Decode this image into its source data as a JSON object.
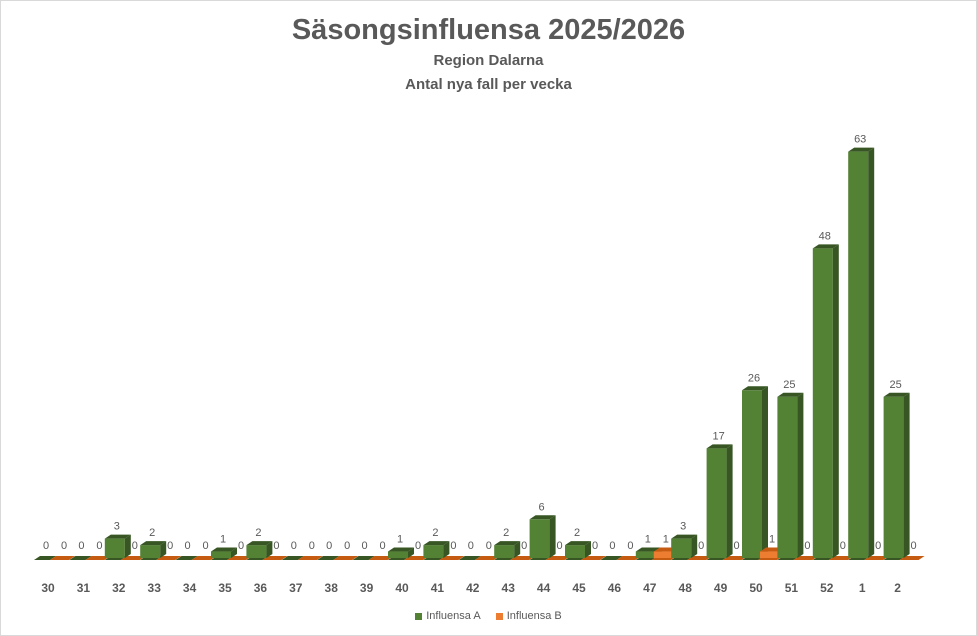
{
  "title": "Säsongsinfluensa 2025/2026",
  "subtitle1": "Region Dalarna",
  "subtitle2": "Antal nya fall per vecka",
  "legend": {
    "a_label": "Influensa A",
    "b_label": "Influensa B"
  },
  "colors": {
    "a": "#548235",
    "a_dark": "#375623",
    "b": "#ED7D31",
    "b_dark": "#C55A11"
  },
  "chart_data": {
    "type": "bar",
    "title": "Säsongsinfluensa 2025/2026",
    "subtitle": "Region Dalarna — Antal nya fall per vecka",
    "xlabel": "",
    "ylabel": "",
    "categories": [
      "30",
      "31",
      "32",
      "33",
      "34",
      "35",
      "36",
      "37",
      "38",
      "39",
      "40",
      "41",
      "42",
      "43",
      "44",
      "45",
      "46",
      "47",
      "48",
      "49",
      "50",
      "51",
      "52",
      "1",
      "2"
    ],
    "series": [
      {
        "name": "Influensa A",
        "values": [
          0,
          0,
          3,
          2,
          0,
          1,
          2,
          0,
          0,
          0,
          1,
          2,
          0,
          2,
          6,
          2,
          0,
          1,
          3,
          17,
          26,
          25,
          48,
          63,
          25
        ]
      },
      {
        "name": "Influensa B",
        "values": [
          0,
          0,
          0,
          0,
          0,
          0,
          0,
          0,
          0,
          0,
          0,
          0,
          0,
          0,
          0,
          0,
          0,
          1,
          0,
          0,
          1,
          0,
          0,
          0,
          0
        ]
      }
    ],
    "ylim": [
      0,
      65
    ],
    "grid": false,
    "legend_position": "bottom",
    "style": "3d-column"
  }
}
